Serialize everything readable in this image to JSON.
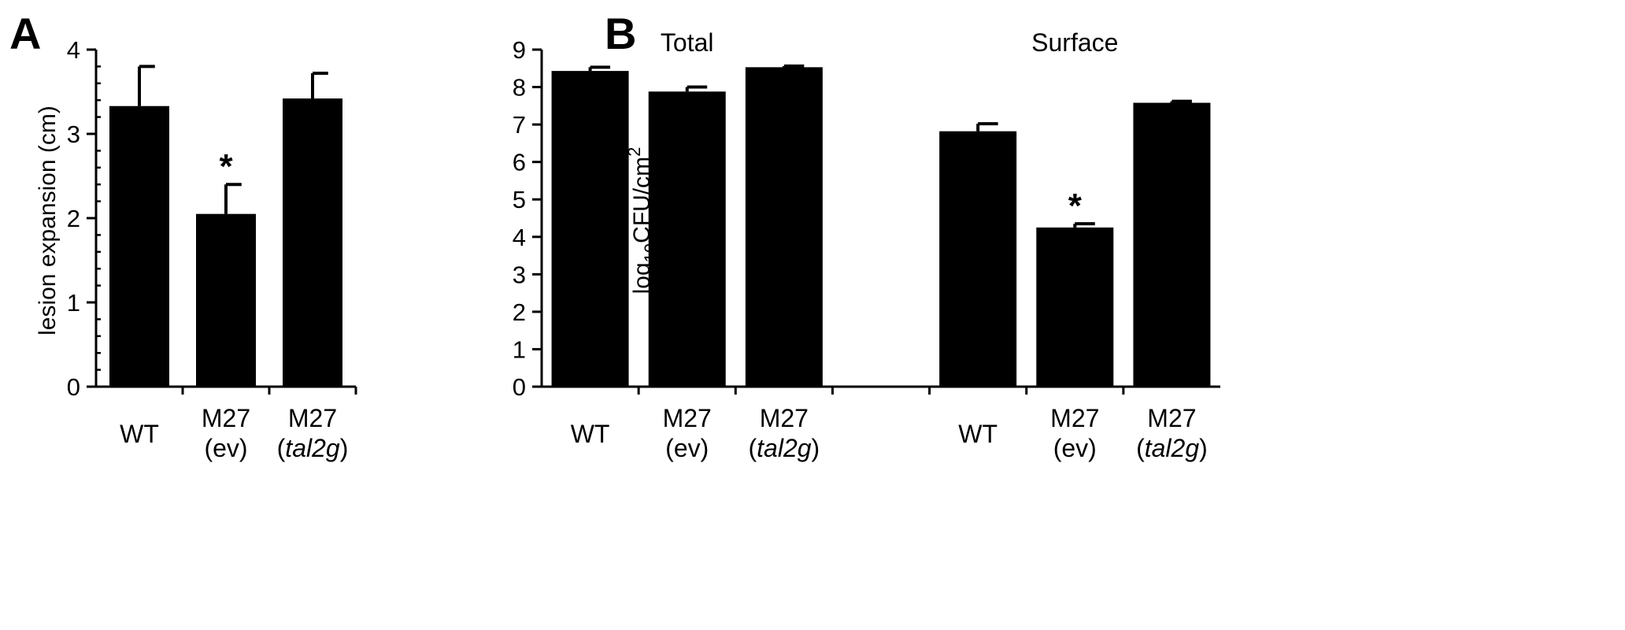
{
  "chart_data": [
    {
      "panel": "A",
      "type": "bar",
      "categories": [
        [
          "WT"
        ],
        [
          "M27",
          "(ev)"
        ],
        [
          "M27",
          "(tal2g)"
        ]
      ],
      "values": [
        3.33,
        2.05,
        3.42
      ],
      "errors": [
        0.47,
        0.35,
        0.3
      ],
      "ylabel": "lesion expansion (cm)",
      "ylim": [
        0,
        4
      ],
      "yticks": [
        "0",
        "1",
        "2",
        "3",
        "4"
      ],
      "significance": [
        "",
        "*",
        ""
      ],
      "color": "#000000"
    },
    {
      "panel": "B",
      "type": "bar",
      "groups": [
        {
          "name": "Total",
          "categories": [
            [
              "WT"
            ],
            [
              "M27",
              "(ev)"
            ],
            [
              "M27",
              "(tal2g)"
            ]
          ],
          "values": [
            8.43,
            7.88,
            8.53
          ],
          "errors": [
            0.1,
            0.12,
            0.03
          ],
          "significance": [
            "",
            "",
            ""
          ]
        },
        {
          "name": "Surface",
          "categories": [
            [
              "WT"
            ],
            [
              "M27",
              "(ev)"
            ],
            [
              "M27",
              "(tal2g)"
            ]
          ],
          "values": [
            6.82,
            4.25,
            7.58
          ],
          "errors": [
            0.2,
            0.1,
            0.04
          ],
          "significance": [
            "",
            "*",
            ""
          ]
        }
      ],
      "ylabel": "log10CFU/cm2",
      "ylim": [
        0,
        9
      ],
      "yticks": [
        "0",
        "1",
        "2",
        "3",
        "4",
        "5",
        "6",
        "7",
        "8",
        "9"
      ],
      "color": "#000000"
    }
  ]
}
